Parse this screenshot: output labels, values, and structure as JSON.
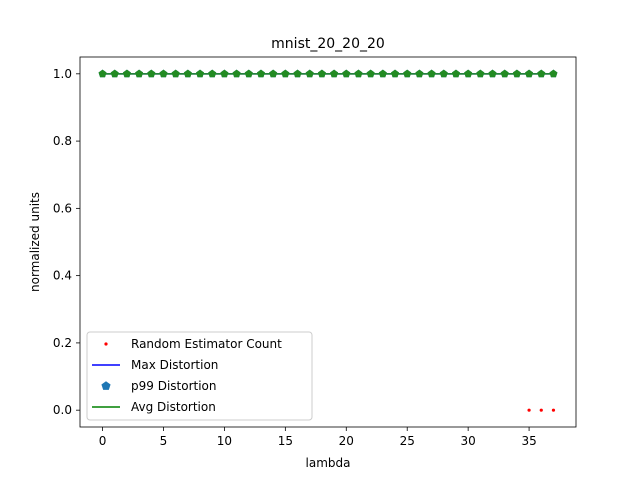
{
  "chart_data": {
    "type": "line",
    "title": "mnist_20_20_20",
    "xlabel": "lambda",
    "ylabel": "normalized units",
    "xlim": [
      -1.85,
      38.85
    ],
    "ylim": [
      -0.05,
      1.05
    ],
    "xticks": [
      0,
      5,
      10,
      15,
      20,
      25,
      30,
      35
    ],
    "yticks": [
      0.0,
      0.2,
      0.4,
      0.6,
      0.8,
      1.0
    ],
    "xtick_labels": [
      "0",
      "5",
      "10",
      "15",
      "20",
      "25",
      "30",
      "35"
    ],
    "ytick_labels": [
      "0.0",
      "0.2",
      "0.4",
      "0.6",
      "0.8",
      "1.0"
    ],
    "grid": false,
    "legend_position": "lower-left",
    "legend": [
      {
        "label": "Random Estimator Count",
        "style": "dot",
        "color": "#ff0000"
      },
      {
        "label": "Max Distortion",
        "style": "line",
        "color": "#0000ff"
      },
      {
        "label": "p99 Distortion",
        "style": "pentagon",
        "color": "#1f77b4"
      },
      {
        "label": "Avg Distortion",
        "style": "line",
        "color": "#008000"
      }
    ],
    "series": [
      {
        "name": "Random Estimator Count",
        "style": "dot",
        "color": "#ff0000",
        "x": [
          35,
          36,
          37
        ],
        "y": [
          0,
          0,
          0
        ]
      },
      {
        "name": "Max Distortion",
        "style": "line",
        "color": "#0000ff",
        "x": [
          0,
          1,
          2,
          3,
          4,
          5,
          6,
          7,
          8,
          9,
          10,
          11,
          12,
          13,
          14,
          15,
          16,
          17,
          18,
          19,
          20,
          21,
          22,
          23,
          24,
          25,
          26,
          27,
          28,
          29,
          30,
          31,
          32,
          33,
          34,
          35,
          36,
          37
        ],
        "y": [
          1,
          1,
          1,
          1,
          1,
          1,
          1,
          1,
          1,
          1,
          1,
          1,
          1,
          1,
          1,
          1,
          1,
          1,
          1,
          1,
          1,
          1,
          1,
          1,
          1,
          1,
          1,
          1,
          1,
          1,
          1,
          1,
          1,
          1,
          1,
          1,
          1,
          1
        ]
      },
      {
        "name": "p99 Distortion",
        "style": "pentagon",
        "color": "#1f77b4",
        "x": [
          0,
          1,
          2,
          3,
          4,
          5,
          6,
          7,
          8,
          9,
          10,
          11,
          12,
          13,
          14,
          15,
          16,
          17,
          18,
          19,
          20,
          21,
          22,
          23,
          24,
          25,
          26,
          27,
          28,
          29,
          30,
          31,
          32,
          33,
          34,
          35,
          36,
          37
        ],
        "y": [
          1,
          1,
          1,
          1,
          1,
          1,
          1,
          1,
          1,
          1,
          1,
          1,
          1,
          1,
          1,
          1,
          1,
          1,
          1,
          1,
          1,
          1,
          1,
          1,
          1,
          1,
          1,
          1,
          1,
          1,
          1,
          1,
          1,
          1,
          1,
          1,
          1,
          1
        ]
      },
      {
        "name": "Avg Distortion",
        "style": "line-pentagon",
        "color": "#228b22",
        "x": [
          0,
          1,
          2,
          3,
          4,
          5,
          6,
          7,
          8,
          9,
          10,
          11,
          12,
          13,
          14,
          15,
          16,
          17,
          18,
          19,
          20,
          21,
          22,
          23,
          24,
          25,
          26,
          27,
          28,
          29,
          30,
          31,
          32,
          33,
          34,
          35,
          36,
          37
        ],
        "y": [
          1,
          1,
          1,
          1,
          1,
          1,
          1,
          1,
          1,
          1,
          1,
          1,
          1,
          1,
          1,
          1,
          1,
          1,
          1,
          1,
          1,
          1,
          1,
          1,
          1,
          1,
          1,
          1,
          1,
          1,
          1,
          1,
          1,
          1,
          1,
          1,
          1,
          1
        ]
      }
    ]
  }
}
